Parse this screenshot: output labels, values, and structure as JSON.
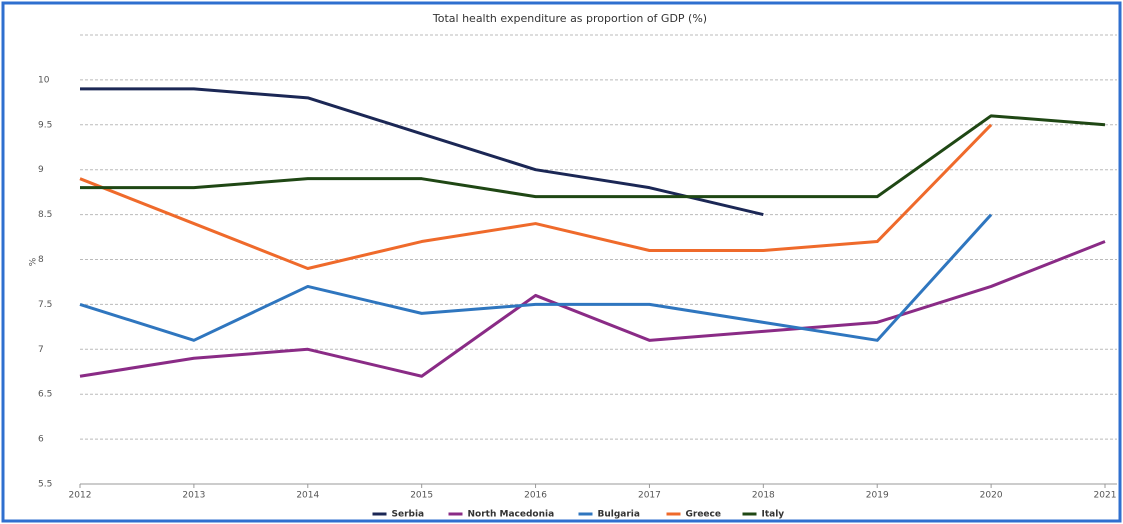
{
  "chart_data": {
    "type": "line",
    "title": "Total health expenditure as proportion of GDP (%)",
    "y_label": "%",
    "x": [
      2012,
      2013,
      2014,
      2015,
      2016,
      2017,
      2018,
      2019,
      2020,
      2021
    ],
    "xlim": [
      2012,
      2021
    ],
    "xticks": [
      2012,
      2013,
      2014,
      2015,
      2016,
      2017,
      2018,
      2019,
      2020,
      2021
    ],
    "ylim": [
      5.5,
      10.5
    ],
    "yticks": [
      5.5,
      6,
      6.5,
      7,
      7.5,
      8,
      8.5,
      9,
      9.5,
      10
    ],
    "grid": true,
    "legend": "bottom",
    "series": [
      {
        "name": "Serbia",
        "color": "#1b2755",
        "values": [
          9.9,
          9.9,
          9.8,
          9.4,
          9.0,
          8.8,
          8.5,
          null,
          null,
          null
        ]
      },
      {
        "name": "North Macedonia",
        "color": "#8a2b86",
        "values": [
          6.7,
          6.9,
          7.0,
          6.7,
          7.6,
          7.1,
          7.2,
          7.3,
          7.7,
          8.2
        ]
      },
      {
        "name": "Bulgaria",
        "color": "#2f76bf",
        "values": [
          7.5,
          7.1,
          7.7,
          7.4,
          7.5,
          7.5,
          7.3,
          7.1,
          8.5,
          null
        ]
      },
      {
        "name": "Greece",
        "color": "#ef6a2b",
        "values": [
          8.9,
          8.4,
          7.9,
          8.2,
          8.4,
          8.1,
          8.1,
          8.2,
          9.5,
          null
        ]
      },
      {
        "name": "Italy",
        "color": "#1f4714",
        "values": [
          8.8,
          8.8,
          8.9,
          8.9,
          8.7,
          8.7,
          8.7,
          8.7,
          9.6,
          9.5
        ]
      }
    ]
  }
}
